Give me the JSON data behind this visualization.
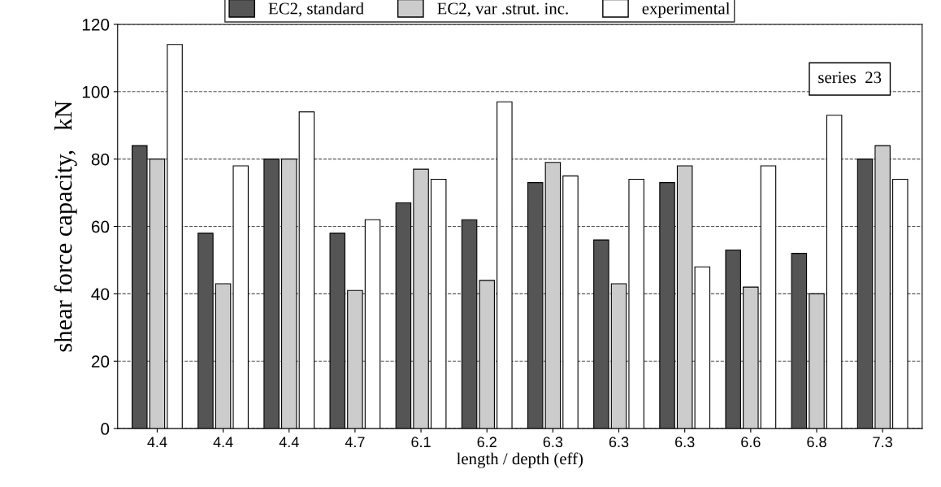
{
  "chart_data": {
    "type": "bar",
    "xlabel": "length / depth (eff)",
    "ylabel": "shear force capacity,   kN",
    "categories": [
      "4.4",
      "4.4",
      "4.4",
      "4.7",
      "6.1",
      "6.2",
      "6.3",
      "6.3",
      "6.3",
      "6.6",
      "6.8",
      "7.3"
    ],
    "series": [
      {
        "name": "EC2, standard",
        "color": "#555555",
        "values": [
          84,
          58,
          80,
          58,
          67,
          62,
          73,
          56,
          73,
          53,
          52,
          80
        ]
      },
      {
        "name": "EC2, var .strut. inc.",
        "color": "#cccccc",
        "values": [
          80,
          43,
          80,
          41,
          77,
          44,
          79,
          43,
          78,
          42,
          40,
          84
        ]
      },
      {
        "name": "experimental",
        "color": "#ffffff",
        "values": [
          114,
          78,
          94,
          62,
          74,
          97,
          75,
          74,
          48,
          78,
          93,
          74
        ]
      }
    ],
    "ylim": [
      0,
      120
    ],
    "yticks": [
      0,
      20,
      40,
      60,
      80,
      100,
      120
    ],
    "grid": "y",
    "legend": "top",
    "annotations": [
      "series  23"
    ]
  }
}
